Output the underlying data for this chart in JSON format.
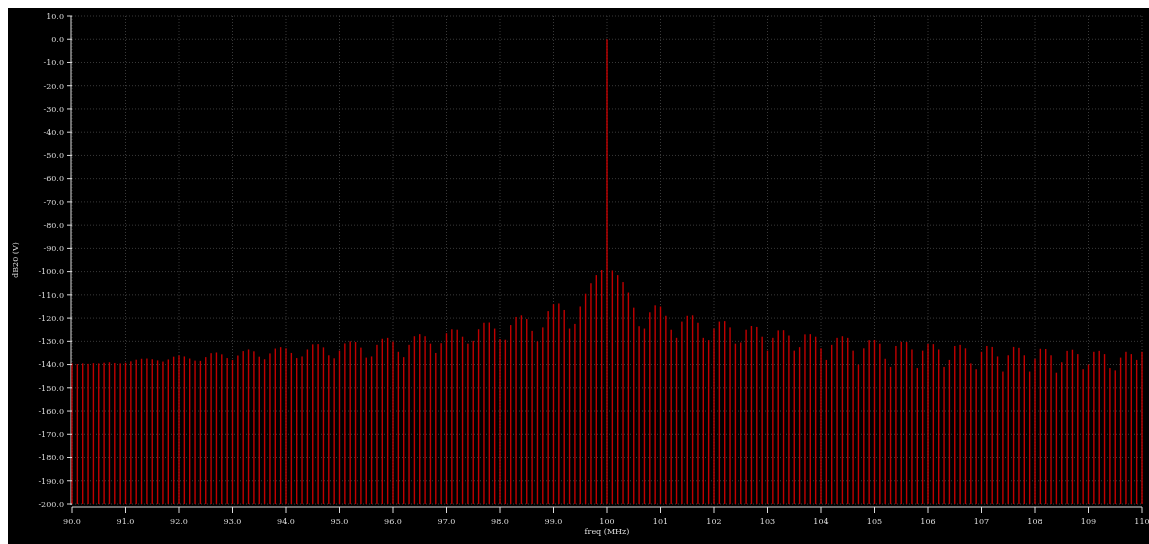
{
  "chart_data": {
    "type": "bar",
    "xlabel": "freq (MHz)",
    "ylabel": "dB20 (V)",
    "color": "#c00000",
    "grid": true,
    "x": [
      90.0,
      90.1,
      90.2,
      90.3,
      90.4,
      90.5,
      90.6,
      90.7,
      90.8,
      90.9,
      91.0,
      91.1,
      91.2,
      91.3,
      91.4,
      91.5,
      91.6,
      91.7,
      91.8,
      91.9,
      92.0,
      92.1,
      92.2,
      92.3,
      92.4,
      92.5,
      92.6,
      92.7,
      92.8,
      92.9,
      93.0,
      93.1,
      93.2,
      93.3,
      93.4,
      93.5,
      93.6,
      93.7,
      93.8,
      93.9,
      94.0,
      94.1,
      94.2,
      94.3,
      94.4,
      94.5,
      94.6,
      94.7,
      94.8,
      94.9,
      95.0,
      95.1,
      95.2,
      95.3,
      95.4,
      95.5,
      95.6,
      95.7,
      95.8,
      95.9,
      96.0,
      96.1,
      96.2,
      96.3,
      96.4,
      96.5,
      96.6,
      96.7,
      96.8,
      96.9,
      97.0,
      97.1,
      97.2,
      97.3,
      97.4,
      97.5,
      97.6,
      97.7,
      97.8,
      97.9,
      98.0,
      98.1,
      98.2,
      98.3,
      98.4,
      98.5,
      98.6,
      98.7,
      98.8,
      98.9,
      99.0,
      99.1,
      99.2,
      99.3,
      99.4,
      99.5,
      99.6,
      99.7,
      99.8,
      99.9,
      100.0,
      100.1,
      100.2,
      100.3,
      100.4,
      100.5,
      100.6,
      100.7,
      100.8,
      100.9,
      101.0,
      101.1,
      101.2,
      101.3,
      101.4,
      101.5,
      101.6,
      101.7,
      101.8,
      101.9,
      102.0,
      102.1,
      102.2,
      102.3,
      102.4,
      102.5,
      102.6,
      102.7,
      102.8,
      102.9,
      103.0,
      103.1,
      103.2,
      103.3,
      103.4,
      103.5,
      103.6,
      103.7,
      103.8,
      103.9,
      104.0,
      104.1,
      104.2,
      104.3,
      104.4,
      104.5,
      104.6,
      104.7,
      104.8,
      104.9,
      105.0,
      105.1,
      105.2,
      105.3,
      105.4,
      105.5,
      105.6,
      105.7,
      105.8,
      105.9,
      106.0,
      106.1,
      106.2,
      106.3,
      106.4,
      106.5,
      106.6,
      106.7,
      106.8,
      106.9,
      107.0,
      107.1,
      107.2,
      107.3,
      107.4,
      107.5,
      107.6,
      107.7,
      107.8,
      107.9,
      108.0,
      108.1,
      108.2,
      108.3,
      108.4,
      108.5,
      108.6,
      108.7,
      108.8,
      108.9,
      109.0,
      109.1,
      109.2,
      109.3,
      109.4,
      109.5,
      109.6,
      109.7,
      109.8,
      109.9,
      110.0
    ],
    "values": [
      60.5,
      60.2,
      60.5,
      60.3,
      60.6,
      60.5,
      60.8,
      61.0,
      60.7,
      60.5,
      60.8,
      61.4,
      62.1,
      62.5,
      62.6,
      62.3,
      61.8,
      61.3,
      62.2,
      63.4,
      63.9,
      63.5,
      62.6,
      61.7,
      61.6,
      63.2,
      64.9,
      65.2,
      64.4,
      62.8,
      62.0,
      63.9,
      65.8,
      66.5,
      65.7,
      63.4,
      62.3,
      64.8,
      66.9,
      67.5,
      67.0,
      65.0,
      62.8,
      63.5,
      66.5,
      68.7,
      68.8,
      67.4,
      64.0,
      62.7,
      66.0,
      69.1,
      70.0,
      69.7,
      67.3,
      63.0,
      63.5,
      68.5,
      71.1,
      71.5,
      69.9,
      65.5,
      63.2,
      68.5,
      72.2,
      73.1,
      72.2,
      69.0,
      65.0,
      69.2,
      73.5,
      75.2,
      75.0,
      72.0,
      69.0,
      70.2,
      75.2,
      78.0,
      78.1,
      75.5,
      71.0,
      70.7,
      77.0,
      80.5,
      81.2,
      79.6,
      74.5,
      70.0,
      76.0,
      83.0,
      86.0,
      86.3,
      83.5,
      75.5,
      77.5,
      85.0,
      90.5,
      95.0,
      98.5,
      100.7,
      200.0,
      100.5,
      98.5,
      95.5,
      91.0,
      84.5,
      76.5,
      75.5,
      82.5,
      85.5,
      85.0,
      81.0,
      75.0,
      71.5,
      78.5,
      81.0,
      81.2,
      78.0,
      71.5,
      70.5,
      75.5,
      78.5,
      78.7,
      76.0,
      69.0,
      69.5,
      75.0,
      76.6,
      76.2,
      72.0,
      66.0,
      71.5,
      74.7,
      74.8,
      72.5,
      66.0,
      67.5,
      73.0,
      73.1,
      72.0,
      67.0,
      62.0,
      68.5,
      71.5,
      72.2,
      71.5,
      66.0,
      60.0,
      67.0,
      70.5,
      70.6,
      69.0,
      62.5,
      59.0,
      68.0,
      69.8,
      69.7,
      66.5,
      58.5,
      66.0,
      68.9,
      68.8,
      66.5,
      59.0,
      62.0,
      68.0,
      68.5,
      67.0,
      60.5,
      58.0,
      65.5,
      68.0,
      67.6,
      63.5,
      57.0,
      64.0,
      67.6,
      67.2,
      64.0,
      57.0,
      62.5,
      66.8,
      66.7,
      64.0,
      56.5,
      61.0,
      65.9,
      66.4,
      64.5,
      58.0,
      60.0,
      65.5,
      65.9,
      64.5,
      58.5,
      57.5,
      63.0,
      65.5,
      64.5,
      62.0,
      65.5
    ],
    "base": [
      -200,
      -200,
      -200,
      -200,
      -200,
      -200,
      -200,
      -200,
      -200,
      -200,
      -200,
      -200,
      -200,
      -200,
      -200,
      -200,
      -200,
      -200,
      -200,
      -200,
      -200,
      -200,
      -200,
      -200,
      -200,
      -200,
      -200,
      -200,
      -200,
      -200,
      -200,
      -200,
      -200,
      -200,
      -200,
      -200,
      -200,
      -200,
      -200,
      -200,
      -200,
      -200,
      -200,
      -200,
      -200,
      -200,
      -200,
      -200,
      -200,
      -200,
      -200,
      -200,
      -200,
      -200,
      -200,
      -200,
      -200,
      -200,
      -200,
      -200,
      -200,
      -200,
      -200,
      -200,
      -200,
      -200,
      -200,
      -200,
      -200,
      -200,
      -200,
      -200,
      -200,
      -200,
      -200,
      -200,
      -200,
      -200,
      -200,
      -200,
      -200,
      -200,
      -200,
      -200,
      -200,
      -200,
      -200,
      -200,
      -200,
      -200,
      -200,
      -200,
      -200,
      -200,
      -200,
      -200,
      -200,
      -200,
      -200,
      -200,
      -200,
      -200,
      -200,
      -200,
      -200,
      -200,
      -200,
      -200,
      -200,
      -200,
      -200,
      -200,
      -200,
      -200,
      -200,
      -200,
      -200,
      -200,
      -200,
      -200,
      -200,
      -200,
      -200,
      -200,
      -200,
      -200,
      -200,
      -200,
      -200,
      -200,
      -200,
      -200,
      -200,
      -200,
      -200,
      -200,
      -200,
      -200,
      -200,
      -200,
      -200,
      -200,
      -200,
      -200,
      -200,
      -200,
      -200,
      -200,
      -200,
      -200,
      -200,
      -200,
      -200,
      -200,
      -200,
      -200,
      -200,
      -200,
      -200,
      -200,
      -200,
      -200,
      -200,
      -200,
      -200,
      -200,
      -200,
      -200,
      -200,
      -200,
      -200,
      -200,
      -200,
      -200,
      -200,
      -200,
      -200,
      -200,
      -200,
      -200,
      -200,
      -200,
      -200,
      -200,
      -200,
      -200,
      -200,
      -200,
      -200,
      -200,
      -200,
      -200,
      -200,
      -200,
      -200,
      -200,
      -200,
      -200,
      -200,
      -200,
      -200
    ],
    "xlim": [
      90,
      110
    ],
    "xticks": [
      {
        "value": 90,
        "label": "90.0"
      },
      {
        "value": 91,
        "label": "91.0"
      },
      {
        "value": 92,
        "label": "92.0"
      },
      {
        "value": 93,
        "label": "93.0"
      },
      {
        "value": 94,
        "label": "94.0"
      },
      {
        "value": 95,
        "label": "95.0"
      },
      {
        "value": 96,
        "label": "96.0"
      },
      {
        "value": 97,
        "label": "97.0"
      },
      {
        "value": 98,
        "label": "98.0"
      },
      {
        "value": 99,
        "label": "99.0"
      },
      100,
      101,
      102,
      103,
      104,
      105,
      106,
      107,
      108,
      109,
      110
    ],
    "ylim": [
      -200,
      10
    ],
    "yticks": [
      {
        "value": 10,
        "label": "10.0"
      },
      {
        "value": 0,
        "label": "0.0"
      },
      {
        "value": -10,
        "label": "-10.0"
      },
      {
        "value": -20,
        "label": "-20.0"
      },
      {
        "value": -30,
        "label": "-30.0"
      },
      {
        "value": -40,
        "label": "-40.0"
      },
      {
        "value": -50,
        "label": "-50.0"
      },
      {
        "value": -60,
        "label": "-60.0"
      },
      {
        "value": -70,
        "label": "-70.0"
      },
      {
        "value": -80,
        "label": "-80.0"
      },
      {
        "value": -90,
        "label": "-90.0"
      },
      {
        "value": -100,
        "label": "-100.0"
      },
      {
        "value": -110,
        "label": "-110.0"
      },
      {
        "value": -120,
        "label": "-120.0"
      },
      {
        "value": -130,
        "label": "-130.0"
      },
      {
        "value": -140,
        "label": "-140.0"
      },
      {
        "value": -150,
        "label": "-150.0"
      },
      {
        "value": -160,
        "label": "-160.0"
      },
      {
        "value": -170,
        "label": "-170.0"
      },
      {
        "value": -180,
        "label": "-180.0"
      },
      {
        "value": -190,
        "label": "-190.0"
      },
      {
        "value": -200,
        "label": "-200.0"
      }
    ]
  }
}
